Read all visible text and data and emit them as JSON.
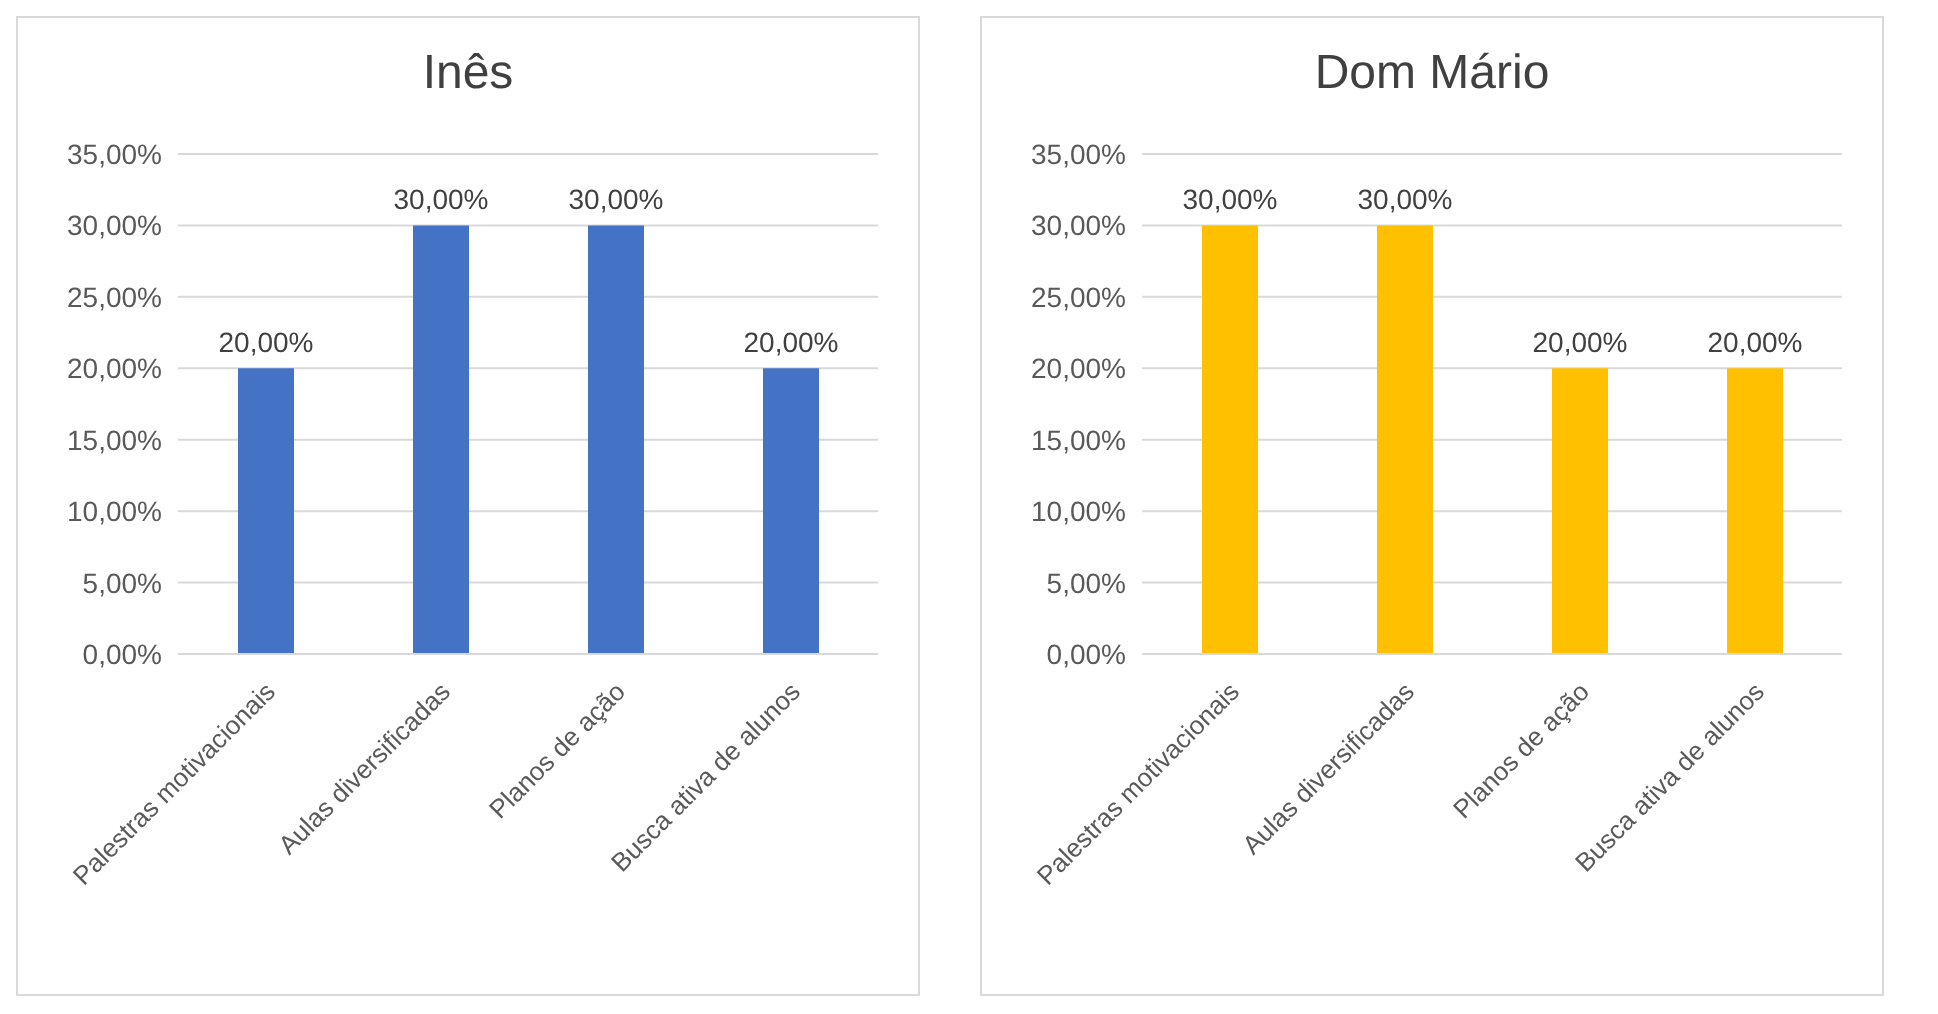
{
  "chart_data": [
    {
      "type": "bar",
      "title": "Inês",
      "categories": [
        "Palestras motivacionais",
        "Aulas diversificadas",
        "Planos de ação",
        "Busca ativa de alunos"
      ],
      "values": [
        20,
        30,
        30,
        20
      ],
      "color": "#4472c4",
      "value_labels": [
        "20,00%",
        "30,00%",
        "30,00%",
        "20,00%"
      ],
      "ylim": [
        0,
        35
      ],
      "yticks": [
        {
          "value": 0,
          "label": "0,00%"
        },
        {
          "value": 5,
          "label": "5,00%"
        },
        {
          "value": 10,
          "label": "10,00%"
        },
        {
          "value": 15,
          "label": "15,00%"
        },
        {
          "value": 20,
          "label": "20,00%"
        },
        {
          "value": 25,
          "label": "25,00%"
        },
        {
          "value": 30,
          "label": "30,00%"
        },
        {
          "value": 35,
          "label": "35,00%"
        }
      ],
      "grid": "y"
    },
    {
      "type": "bar",
      "title": "Dom Mário",
      "categories": [
        "Palestras motivacionais",
        "Aulas diversificadas",
        "Planos de ação",
        "Busca ativa de alunos"
      ],
      "values": [
        30,
        30,
        20,
        20
      ],
      "color": "#ffc000",
      "value_labels": [
        "30,00%",
        "30,00%",
        "20,00%",
        "20,00%"
      ],
      "ylim": [
        0,
        35
      ],
      "yticks": [
        {
          "value": 0,
          "label": "0,00%"
        },
        {
          "value": 5,
          "label": "5,00%"
        },
        {
          "value": 10,
          "label": "10,00%"
        },
        {
          "value": 15,
          "label": "15,00%"
        },
        {
          "value": 20,
          "label": "20,00%"
        },
        {
          "value": 25,
          "label": "25,00%"
        },
        {
          "value": 30,
          "label": "30,00%"
        },
        {
          "value": 35,
          "label": "35,00%"
        }
      ],
      "grid": "y"
    }
  ]
}
